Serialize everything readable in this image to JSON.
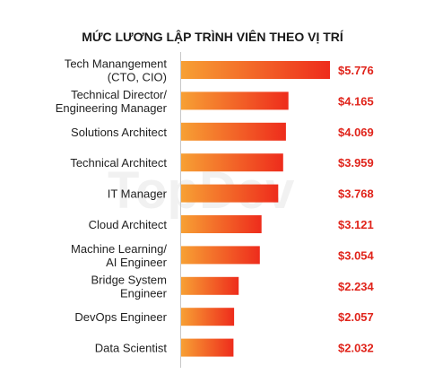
{
  "chart_data": {
    "type": "bar",
    "orientation": "horizontal",
    "title": "MỨC LƯƠNG LẬP TRÌNH VIÊN THEO VỊ TRÍ",
    "categories": [
      "Tech Manangement\n(CTO, CIO)",
      "Technical Director/\nEngineering Manager",
      "Solutions Architect",
      "Technical Architect",
      "IT Manager",
      "Cloud Architect",
      "Machine Learning/\nAI Engineer",
      "Bridge System\nEngineer",
      "DevOps Engineer",
      "Data Scientist"
    ],
    "values": [
      5776,
      4165,
      4069,
      3959,
      3768,
      3121,
      3054,
      2234,
      2057,
      2032
    ],
    "value_labels": [
      "$5.776",
      "$4.165",
      "$4.069",
      "$3.959",
      "$3.768",
      "$3.121",
      "$3.054",
      "$2.234",
      "$2.057",
      "$2.032"
    ],
    "xlim": [
      0,
      5776
    ],
    "grid": false,
    "bar_colors": {
      "gradient_start": "#f7a034",
      "gradient_end": "#ee2c1c"
    },
    "value_label_color": "#e0241b"
  },
  "watermark": "TopDev"
}
